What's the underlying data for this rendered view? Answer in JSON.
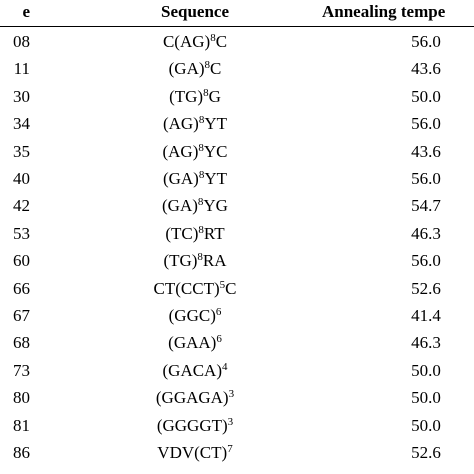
{
  "table": {
    "headers": {
      "name": "e",
      "sequence": "Sequence",
      "temperature": "Annealing tempe"
    },
    "rows": [
      {
        "name": "08",
        "seq_parts": [
          {
            "t": "C(AG)"
          },
          {
            "t": "8",
            "sup": true
          },
          {
            "t": "C"
          }
        ],
        "temp": "56.0"
      },
      {
        "name": "11",
        "seq_parts": [
          {
            "t": "(GA)"
          },
          {
            "t": "8",
            "sup": true
          },
          {
            "t": "C"
          }
        ],
        "temp": "43.6"
      },
      {
        "name": "30",
        "seq_parts": [
          {
            "t": "(TG)"
          },
          {
            "t": "8",
            "sup": true
          },
          {
            "t": "G"
          }
        ],
        "temp": "50.0"
      },
      {
        "name": "34",
        "seq_parts": [
          {
            "t": "(AG)"
          },
          {
            "t": "8",
            "sup": true
          },
          {
            "t": "YT"
          }
        ],
        "temp": "56.0"
      },
      {
        "name": "35",
        "seq_parts": [
          {
            "t": "(AG)"
          },
          {
            "t": "8",
            "sup": true
          },
          {
            "t": "YC"
          }
        ],
        "temp": "43.6"
      },
      {
        "name": "40",
        "seq_parts": [
          {
            "t": "(GA)"
          },
          {
            "t": "8",
            "sup": true
          },
          {
            "t": "YT"
          }
        ],
        "temp": "56.0"
      },
      {
        "name": "42",
        "seq_parts": [
          {
            "t": "(GA)"
          },
          {
            "t": "8",
            "sup": true
          },
          {
            "t": "YG"
          }
        ],
        "temp": "54.7"
      },
      {
        "name": "53",
        "seq_parts": [
          {
            "t": "(TC)"
          },
          {
            "t": "8",
            "sup": true
          },
          {
            "t": "RT"
          }
        ],
        "temp": "46.3"
      },
      {
        "name": "60",
        "seq_parts": [
          {
            "t": "(TG)"
          },
          {
            "t": "8",
            "sup": true
          },
          {
            "t": "RA"
          }
        ],
        "temp": "56.0"
      },
      {
        "name": "66",
        "seq_parts": [
          {
            "t": "CT(CCT)"
          },
          {
            "t": "5",
            "sup": true
          },
          {
            "t": "C"
          }
        ],
        "temp": "52.6"
      },
      {
        "name": "67",
        "seq_parts": [
          {
            "t": "(GGC)"
          },
          {
            "t": "6",
            "sup": true
          }
        ],
        "temp": "41.4"
      },
      {
        "name": "68",
        "seq_parts": [
          {
            "t": "(GAA)"
          },
          {
            "t": "6",
            "sup": true
          }
        ],
        "temp": "46.3"
      },
      {
        "name": "73",
        "seq_parts": [
          {
            "t": "(GACA)"
          },
          {
            "t": "4",
            "sup": true
          }
        ],
        "temp": "50.0"
      },
      {
        "name": "80",
        "seq_parts": [
          {
            "t": "(GGAGA)"
          },
          {
            "t": "3",
            "sup": true
          }
        ],
        "temp": "50.0"
      },
      {
        "name": "81",
        "seq_parts": [
          {
            "t": "(GGGGT)"
          },
          {
            "t": "3",
            "sup": true
          }
        ],
        "temp": "50.0"
      },
      {
        "name": "86",
        "seq_parts": [
          {
            "t": "VDV(CT)"
          },
          {
            "t": "7",
            "sup": true
          }
        ],
        "temp": "52.6"
      }
    ]
  }
}
